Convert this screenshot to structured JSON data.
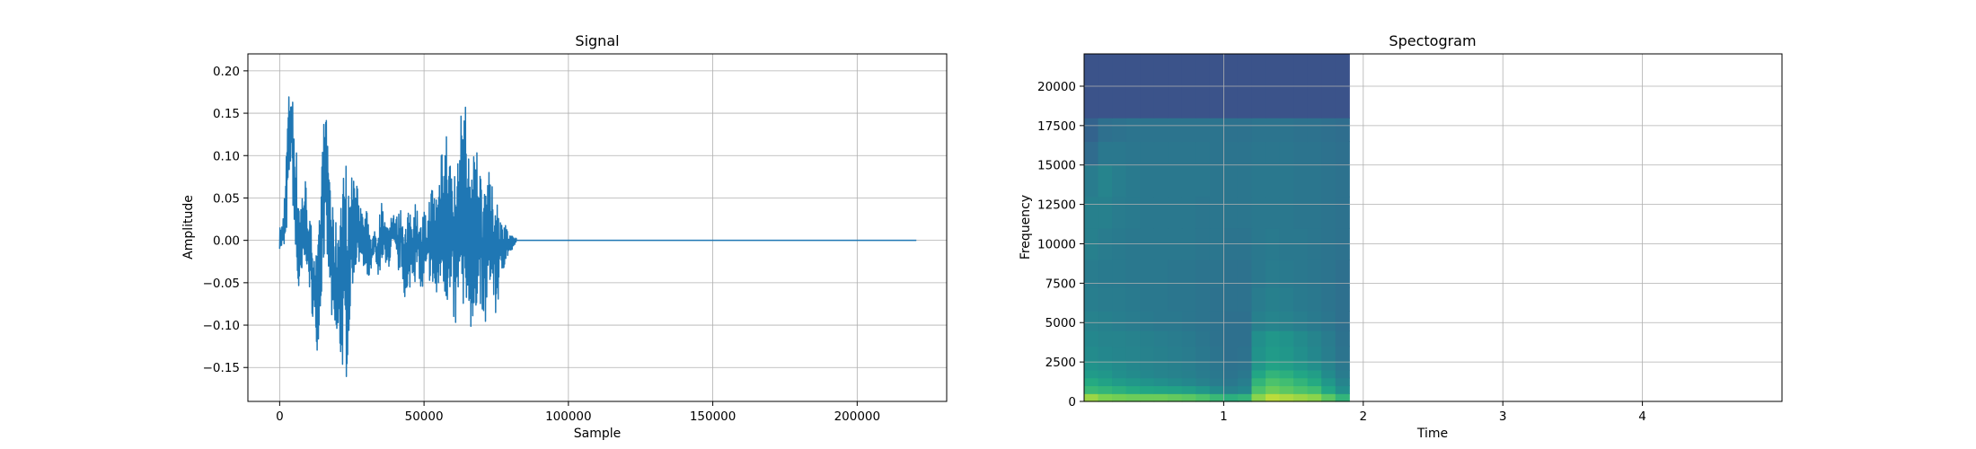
{
  "chart_data": [
    {
      "type": "line",
      "title": "Signal",
      "xlabel": "Sample",
      "ylabel": "Amplitude",
      "xlim": [
        -11000,
        231000
      ],
      "ylim": [
        -0.19,
        0.22
      ],
      "grid": true,
      "xticks": [
        0,
        50000,
        100000,
        150000,
        200000
      ],
      "xtick_labels": [
        "0",
        "50000",
        "100000",
        "150000",
        "200000"
      ],
      "yticks": [
        -0.15,
        -0.1,
        -0.05,
        0.0,
        0.05,
        0.1,
        0.15,
        0.2
      ],
      "ytick_labels": [
        "−0.15",
        "−0.10",
        "−0.05",
        "0.00",
        "0.05",
        "0.10",
        "0.15",
        "0.20"
      ],
      "line_color": "#1f77b4",
      "total_samples": 220500,
      "nonzero_until": 82000,
      "envelope": [
        [
          0,
          -0.01,
          0.015
        ],
        [
          1000,
          -0.01,
          0.02
        ],
        [
          2000,
          -0.02,
          0.08
        ],
        [
          3000,
          0.05,
          0.17
        ],
        [
          4000,
          0.1,
          0.19
        ],
        [
          5000,
          0.0,
          0.15
        ],
        [
          6000,
          -0.06,
          0.1
        ],
        [
          7000,
          -0.085,
          0.05
        ],
        [
          8000,
          -0.05,
          0.07
        ],
        [
          9000,
          -0.02,
          0.075
        ],
        [
          10000,
          -0.05,
          0.03
        ],
        [
          11000,
          -0.08,
          0.02
        ],
        [
          12000,
          -0.11,
          0.0
        ],
        [
          13000,
          -0.13,
          -0.02
        ],
        [
          14000,
          -0.1,
          0.04
        ],
        [
          15000,
          -0.03,
          0.14
        ],
        [
          16000,
          -0.02,
          0.15
        ],
        [
          17000,
          -0.05,
          0.12
        ],
        [
          18000,
          -0.1,
          0.05
        ],
        [
          19000,
          -0.125,
          0.02
        ],
        [
          20000,
          -0.14,
          0.03
        ],
        [
          21000,
          -0.15,
          0.06
        ],
        [
          22000,
          -0.155,
          0.08
        ],
        [
          23000,
          -0.17,
          0.1
        ],
        [
          24000,
          -0.12,
          0.05
        ],
        [
          25000,
          -0.06,
          0.09
        ],
        [
          26000,
          -0.04,
          0.06
        ],
        [
          27000,
          -0.03,
          0.09
        ],
        [
          28000,
          -0.02,
          0.04
        ],
        [
          29000,
          -0.04,
          0.03
        ],
        [
          30000,
          -0.06,
          0.04
        ],
        [
          31000,
          -0.05,
          0.01
        ],
        [
          32000,
          -0.03,
          0.0
        ],
        [
          33000,
          -0.02,
          0.02
        ],
        [
          34000,
          -0.05,
          0.0
        ],
        [
          35000,
          -0.03,
          0.05
        ],
        [
          36000,
          -0.02,
          0.04
        ],
        [
          37000,
          -0.04,
          0.02
        ],
        [
          38000,
          -0.03,
          0.02
        ],
        [
          39000,
          -0.015,
          0.045
        ],
        [
          40000,
          -0.02,
          0.03
        ],
        [
          41000,
          -0.04,
          0.03
        ],
        [
          42000,
          -0.03,
          0.04
        ],
        [
          43000,
          -0.06,
          0.025
        ],
        [
          44000,
          -0.09,
          0.02
        ],
        [
          45000,
          -0.06,
          0.045
        ],
        [
          46000,
          -0.04,
          0.03
        ],
        [
          47000,
          -0.05,
          0.05
        ],
        [
          48000,
          -0.03,
          0.03
        ],
        [
          49000,
          -0.07,
          0.02
        ],
        [
          50000,
          -0.06,
          0.04
        ],
        [
          51000,
          -0.04,
          0.02
        ],
        [
          52000,
          -0.05,
          0.06
        ],
        [
          53000,
          -0.06,
          0.07
        ],
        [
          54000,
          -0.085,
          0.06
        ],
        [
          55000,
          -0.07,
          0.07
        ],
        [
          56000,
          -0.05,
          0.13
        ],
        [
          57000,
          -0.065,
          0.13
        ],
        [
          58000,
          -0.08,
          0.14
        ],
        [
          59000,
          -0.1,
          0.1
        ],
        [
          60000,
          -0.09,
          0.09
        ],
        [
          61000,
          -0.12,
          0.08
        ],
        [
          62000,
          -0.07,
          0.1
        ],
        [
          63000,
          -0.1,
          0.16
        ],
        [
          64000,
          -0.165,
          0.2
        ],
        [
          65000,
          -0.05,
          0.1
        ],
        [
          66000,
          -0.1,
          0.12
        ],
        [
          67000,
          -0.14,
          0.1
        ],
        [
          68000,
          -0.08,
          0.12
        ],
        [
          69000,
          -0.06,
          0.11
        ],
        [
          70000,
          -0.09,
          0.07
        ],
        [
          71000,
          -0.115,
          0.08
        ],
        [
          72000,
          -0.08,
          0.09
        ],
        [
          73000,
          -0.05,
          0.07
        ],
        [
          74000,
          -0.07,
          0.06
        ],
        [
          75000,
          -0.1,
          0.06
        ],
        [
          76000,
          -0.06,
          0.04
        ],
        [
          77000,
          -0.04,
          0.02
        ],
        [
          78000,
          -0.03,
          0.03
        ],
        [
          79000,
          -0.02,
          0.01
        ],
        [
          80000,
          -0.015,
          0.005
        ],
        [
          81000,
          -0.01,
          0.005
        ],
        [
          82000,
          -0.003,
          0.003
        ]
      ]
    },
    {
      "type": "heatmap",
      "title": "Spectogram",
      "xlabel": "Time",
      "ylabel": "Frequency",
      "xlim": [
        0.0,
        5.0
      ],
      "ylim": [
        0,
        22050
      ],
      "grid": true,
      "colormap": "viridis",
      "xticks": [
        1,
        2,
        3,
        4
      ],
      "xtick_labels": [
        "1",
        "2",
        "3",
        "4"
      ],
      "yticks": [
        0,
        2500,
        5000,
        7500,
        10000,
        12500,
        15000,
        17500,
        20000
      ],
      "ytick_labels": [
        "0",
        "2500",
        "5000",
        "7500",
        "10000",
        "12500",
        "15000",
        "17500",
        "20000"
      ],
      "data_time_range": [
        0.0,
        1.9
      ],
      "cutoff_frequency": 17500,
      "time_steps": [
        0.05,
        0.15,
        0.25,
        0.35,
        0.45,
        0.55,
        0.65,
        0.75,
        0.85,
        0.95,
        1.05,
        1.15,
        1.25,
        1.35,
        1.45,
        1.55,
        1.65,
        1.75,
        1.85
      ],
      "freq_bands": [
        250,
        750,
        1250,
        1750,
        2250,
        3000,
        4000,
        5000,
        6500,
        8000,
        10000,
        12000,
        14000,
        16000,
        17000,
        19000,
        21000
      ],
      "level": [
        [
          0.94,
          0.92,
          0.91,
          0.9,
          0.9,
          0.9,
          0.89,
          0.88,
          0.86,
          0.82,
          0.78,
          0.8,
          0.93,
          0.96,
          0.95,
          0.94,
          0.93,
          0.88,
          0.8
        ],
        [
          0.82,
          0.8,
          0.78,
          0.76,
          0.74,
          0.73,
          0.72,
          0.7,
          0.66,
          0.6,
          0.55,
          0.58,
          0.86,
          0.9,
          0.88,
          0.86,
          0.84,
          0.74,
          0.62
        ],
        [
          0.76,
          0.72,
          0.68,
          0.66,
          0.64,
          0.62,
          0.6,
          0.58,
          0.55,
          0.52,
          0.5,
          0.53,
          0.8,
          0.86,
          0.84,
          0.8,
          0.76,
          0.66,
          0.56
        ],
        [
          0.68,
          0.66,
          0.62,
          0.6,
          0.58,
          0.56,
          0.55,
          0.54,
          0.52,
          0.5,
          0.48,
          0.5,
          0.74,
          0.8,
          0.78,
          0.74,
          0.7,
          0.6,
          0.52
        ],
        [
          0.64,
          0.62,
          0.6,
          0.58,
          0.56,
          0.55,
          0.54,
          0.53,
          0.51,
          0.49,
          0.47,
          0.48,
          0.66,
          0.72,
          0.7,
          0.66,
          0.62,
          0.56,
          0.5
        ],
        [
          0.6,
          0.58,
          0.57,
          0.56,
          0.55,
          0.54,
          0.53,
          0.52,
          0.5,
          0.48,
          0.46,
          0.47,
          0.64,
          0.68,
          0.66,
          0.62,
          0.58,
          0.53,
          0.48
        ],
        [
          0.58,
          0.56,
          0.56,
          0.55,
          0.54,
          0.53,
          0.52,
          0.51,
          0.49,
          0.47,
          0.46,
          0.46,
          0.62,
          0.66,
          0.64,
          0.6,
          0.56,
          0.52,
          0.47
        ],
        [
          0.55,
          0.54,
          0.53,
          0.52,
          0.51,
          0.5,
          0.5,
          0.49,
          0.48,
          0.47,
          0.46,
          0.46,
          0.54,
          0.56,
          0.55,
          0.53,
          0.51,
          0.49,
          0.46
        ],
        [
          0.53,
          0.52,
          0.52,
          0.51,
          0.5,
          0.5,
          0.49,
          0.49,
          0.48,
          0.47,
          0.47,
          0.47,
          0.52,
          0.54,
          0.53,
          0.51,
          0.5,
          0.48,
          0.46
        ],
        [
          0.52,
          0.51,
          0.51,
          0.5,
          0.5,
          0.5,
          0.49,
          0.49,
          0.48,
          0.48,
          0.47,
          0.47,
          0.5,
          0.52,
          0.51,
          0.5,
          0.49,
          0.48,
          0.46
        ],
        [
          0.54,
          0.52,
          0.51,
          0.5,
          0.5,
          0.5,
          0.5,
          0.5,
          0.49,
          0.49,
          0.48,
          0.48,
          0.5,
          0.51,
          0.5,
          0.5,
          0.49,
          0.48,
          0.47
        ],
        [
          0.54,
          0.54,
          0.52,
          0.51,
          0.5,
          0.5,
          0.5,
          0.5,
          0.49,
          0.49,
          0.49,
          0.49,
          0.5,
          0.5,
          0.5,
          0.49,
          0.49,
          0.48,
          0.47
        ],
        [
          0.52,
          0.56,
          0.53,
          0.51,
          0.5,
          0.5,
          0.5,
          0.5,
          0.5,
          0.49,
          0.49,
          0.49,
          0.5,
          0.5,
          0.5,
          0.49,
          0.49,
          0.48,
          0.47
        ],
        [
          0.44,
          0.5,
          0.5,
          0.49,
          0.49,
          0.49,
          0.49,
          0.49,
          0.49,
          0.48,
          0.48,
          0.48,
          0.49,
          0.49,
          0.49,
          0.48,
          0.48,
          0.47,
          0.46
        ],
        [
          0.4,
          0.46,
          0.47,
          0.48,
          0.48,
          0.48,
          0.48,
          0.48,
          0.48,
          0.48,
          0.47,
          0.47,
          0.48,
          0.48,
          0.48,
          0.47,
          0.47,
          0.46,
          0.45
        ],
        [
          0.32,
          0.32,
          0.32,
          0.32,
          0.32,
          0.32,
          0.32,
          0.32,
          0.32,
          0.32,
          0.32,
          0.32,
          0.32,
          0.32,
          0.32,
          0.32,
          0.32,
          0.32,
          0.32
        ],
        [
          0.32,
          0.32,
          0.32,
          0.32,
          0.32,
          0.32,
          0.32,
          0.32,
          0.32,
          0.32,
          0.32,
          0.32,
          0.32,
          0.32,
          0.32,
          0.32,
          0.32,
          0.32,
          0.32
        ]
      ]
    }
  ]
}
